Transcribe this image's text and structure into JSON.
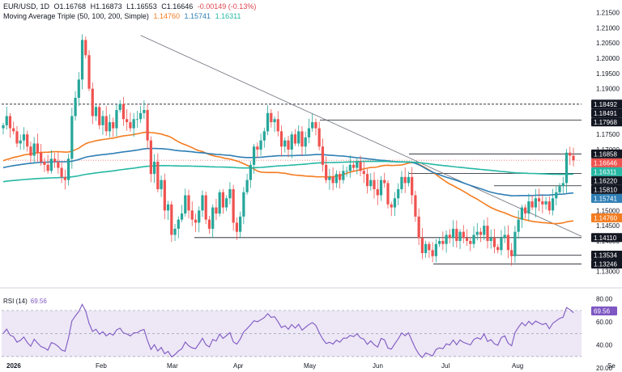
{
  "header": {
    "symbol": "EUR/USD, 1D",
    "open": "O1.16768",
    "high": "H1.16873",
    "low": "L1.16553",
    "close": "C1.16646",
    "change": "-0.00149 (-0.13%)",
    "ma_label": "Moving Average Triple (50, 100, 200, Simple)",
    "ma50": "1.14760",
    "ma100": "1.15741",
    "ma200": "1.16311"
  },
  "rsi": {
    "label": "RSI (14)",
    "value": "69.56"
  },
  "colors": {
    "up": "#26a69a",
    "down": "#ef5350",
    "ma50": "#f47c20",
    "ma100": "#2f7fb5",
    "ma200": "#26b8a4",
    "rsi": "#7e57c2"
  },
  "chart_data": [
    {
      "type": "candlestick",
      "title": "EUR/USD, 1D",
      "ylim": [
        1.1275,
        1.217
      ],
      "y_ticks": [
        "1.21500",
        "1.21000",
        "1.20500",
        "1.20000",
        "1.19500",
        "1.19000",
        "1.18500",
        "1.18000",
        "1.17500",
        "1.17000",
        "1.16500",
        "1.16000",
        "1.15500",
        "1.15000",
        "1.14500",
        "1.14000",
        "1.13500",
        "1.13000"
      ],
      "x_labels": [
        "2026",
        "Feb",
        "Mar",
        "Apr",
        "May",
        "Jun",
        "Jul",
        "Aug",
        "Se"
      ],
      "price_tags": [
        {
          "label": "1.18492",
          "style": "dark"
        },
        {
          "label": "1.18491",
          "style": "dark"
        },
        {
          "label": "1.17968",
          "style": "dark"
        },
        {
          "label": "1.16858",
          "style": "dark"
        },
        {
          "label": "1.16646",
          "style": "down"
        },
        {
          "label": "1.16311",
          "style": "ma200"
        },
        {
          "label": "1.16220",
          "style": "dark"
        },
        {
          "label": "1.15810",
          "style": "dark"
        },
        {
          "label": "1.15741",
          "style": "ma100"
        },
        {
          "label": "1.14760",
          "style": "ma50"
        },
        {
          "label": "1.14110",
          "style": "dark"
        },
        {
          "label": "1.13534",
          "style": "dark"
        },
        {
          "label": "1.13246",
          "style": "dark"
        }
      ],
      "horizontal_levels": [
        1.18492,
        1.17968,
        1.16858,
        1.1622,
        1.1581,
        1.1411,
        1.13534,
        1.13246
      ],
      "trendline": {
        "from": {
          "date": "2026-01-27",
          "price": 1.2075
        },
        "to": {
          "date": "2026-09-01",
          "price": 1.1415
        }
      },
      "closes": [
        1.178,
        1.181,
        1.177,
        1.176,
        1.172,
        1.173,
        1.175,
        1.171,
        1.168,
        1.172,
        1.169,
        1.166,
        1.165,
        1.163,
        1.167,
        1.166,
        1.164,
        1.161,
        1.16,
        1.167,
        1.181,
        1.187,
        1.193,
        1.206,
        1.201,
        1.19,
        1.181,
        1.184,
        1.178,
        1.181,
        1.176,
        1.179,
        1.177,
        1.183,
        1.185,
        1.18,
        1.179,
        1.177,
        1.18,
        1.18,
        1.182,
        1.183,
        1.173,
        1.162,
        1.166,
        1.157,
        1.16,
        1.15,
        1.152,
        1.142,
        1.144,
        1.147,
        1.149,
        1.155,
        1.15,
        1.147,
        1.146,
        1.15,
        1.155,
        1.147,
        1.144,
        1.151,
        1.149,
        1.156,
        1.151,
        1.154,
        1.157,
        1.146,
        1.143,
        1.148,
        1.156,
        1.16,
        1.165,
        1.171,
        1.17,
        1.173,
        1.176,
        1.182,
        1.179,
        1.18,
        1.176,
        1.171,
        1.173,
        1.17,
        1.175,
        1.172,
        1.176,
        1.171,
        1.174,
        1.177,
        1.179,
        1.177,
        1.171,
        1.165,
        1.16,
        1.161,
        1.159,
        1.162,
        1.16,
        1.163,
        1.163,
        1.165,
        1.164,
        1.166,
        1.163,
        1.162,
        1.158,
        1.16,
        1.157,
        1.155,
        1.16,
        1.159,
        1.152,
        1.151,
        1.154,
        1.157,
        1.161,
        1.159,
        1.161,
        1.155,
        1.148,
        1.141,
        1.136,
        1.139,
        1.137,
        1.135,
        1.139,
        1.14,
        1.139,
        1.142,
        1.141,
        1.144,
        1.14,
        1.143,
        1.141,
        1.14,
        1.139,
        1.142,
        1.143,
        1.142,
        1.145,
        1.14,
        1.141,
        1.138,
        1.137,
        1.141,
        1.142,
        1.137,
        1.135,
        1.143,
        1.147,
        1.151,
        1.149,
        1.153,
        1.151,
        1.154,
        1.153,
        1.152,
        1.153,
        1.15,
        1.154,
        1.156,
        1.158,
        1.159,
        1.169,
        1.168,
        1.1665
      ],
      "series": [
        {
          "name": "MA 50",
          "last": 1.1476
        },
        {
          "name": "MA 100",
          "last": 1.15741
        },
        {
          "name": "MA 200",
          "last": 1.16311
        }
      ]
    },
    {
      "type": "line",
      "title": "RSI (14)",
      "ylim": [
        25,
        84
      ],
      "y_ticks": [
        "80.00",
        "60.00",
        "40.00",
        "20.00"
      ],
      "levels": [
        70,
        50,
        30
      ],
      "last": 69.56
    }
  ]
}
